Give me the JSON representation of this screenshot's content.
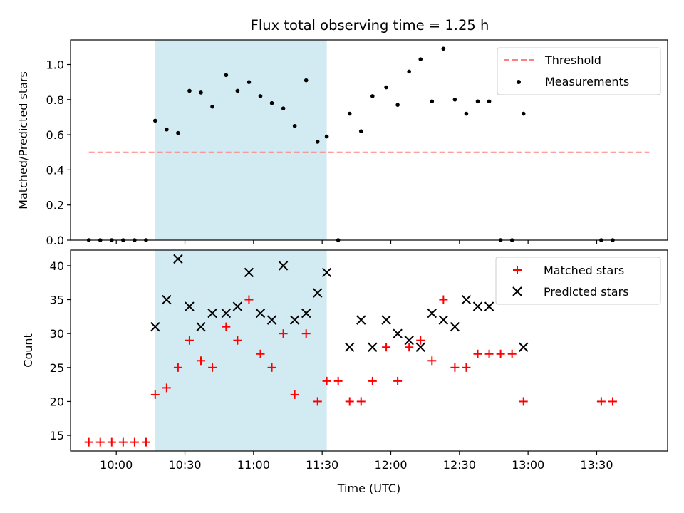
{
  "chart_data": [
    {
      "type": "scatter",
      "title": "Flux total observing time = 1.25 h",
      "xlabel": "",
      "ylabel": "Matched/Predicted stars",
      "xlim": [
        "09:40",
        "14:01"
      ],
      "ylim": [
        0,
        1.14
      ],
      "yticks": [
        0.0,
        0.2,
        0.4,
        0.6,
        0.8,
        1.0
      ],
      "ytick_labels": [
        "0.0",
        "0.2",
        "0.4",
        "0.6",
        "0.8",
        "1.0"
      ],
      "grid": false,
      "highlight_span": {
        "start": "10:17",
        "end": "11:32",
        "color": "#add8e6"
      },
      "legend": {
        "position": "top-right",
        "entries": [
          "Threshold",
          "Measurements"
        ]
      },
      "threshold": {
        "name": "Threshold",
        "y": 0.5,
        "x_start": "09:48",
        "x_end": "13:53",
        "color": "#ff8080",
        "style": "dashed"
      },
      "series": [
        {
          "name": "Measurements",
          "color": "#000000",
          "marker": "dot",
          "x": [
            "09:48",
            "09:53",
            "09:58",
            "10:03",
            "10:08",
            "10:13",
            "10:17",
            "10:22",
            "10:27",
            "10:32",
            "10:37",
            "10:42",
            "10:48",
            "10:53",
            "10:58",
            "11:03",
            "11:08",
            "11:13",
            "11:18",
            "11:23",
            "11:28",
            "11:32",
            "11:37",
            "11:42",
            "11:47",
            "11:52",
            "11:58",
            "12:03",
            "12:08",
            "12:13",
            "12:18",
            "12:23",
            "12:28",
            "12:33",
            "12:38",
            "12:43",
            "12:48",
            "12:53",
            "12:58",
            "13:32",
            "13:37"
          ],
          "y": [
            0,
            0,
            0,
            0,
            0,
            0,
            0.68,
            0.63,
            0.61,
            0.85,
            0.84,
            0.76,
            0.94,
            0.85,
            0.9,
            0.82,
            0.78,
            0.75,
            0.65,
            0.91,
            0.56,
            0.59,
            0,
            0.72,
            0.62,
            0.82,
            0.87,
            0.77,
            0.96,
            1.03,
            0.79,
            1.09,
            0.8,
            0.72,
            0.79,
            0.79,
            0,
            0,
            0.72,
            0,
            0
          ]
        }
      ]
    },
    {
      "type": "scatter",
      "title": "",
      "xlabel": "Time (UTC)",
      "ylabel": "Count",
      "xlim": [
        "09:40",
        "14:01"
      ],
      "ylim": [
        12.7,
        42.3
      ],
      "xticks": [
        "10:00",
        "10:30",
        "11:00",
        "11:30",
        "12:00",
        "12:30",
        "13:00",
        "13:30"
      ],
      "yticks": [
        15,
        20,
        25,
        30,
        35,
        40
      ],
      "ytick_labels": [
        "15",
        "20",
        "25",
        "30",
        "35",
        "40"
      ],
      "grid": false,
      "highlight_span": {
        "start": "10:17",
        "end": "11:32",
        "color": "#add8e6"
      },
      "legend": {
        "position": "top-right",
        "entries": [
          "Matched stars",
          "Predicted stars"
        ]
      },
      "series": [
        {
          "name": "Matched stars",
          "color": "#ff0000",
          "marker": "plus",
          "x": [
            "09:48",
            "09:53",
            "09:58",
            "10:03",
            "10:08",
            "10:13",
            "10:17",
            "10:22",
            "10:27",
            "10:32",
            "10:37",
            "10:42",
            "10:48",
            "10:53",
            "10:58",
            "11:03",
            "11:08",
            "11:13",
            "11:18",
            "11:23",
            "11:28",
            "11:32",
            "11:37",
            "11:42",
            "11:47",
            "11:52",
            "11:58",
            "12:03",
            "12:08",
            "12:13",
            "12:18",
            "12:23",
            "12:28",
            "12:33",
            "12:38",
            "12:43",
            "12:48",
            "12:53",
            "12:58",
            "13:32",
            "13:37"
          ],
          "y": [
            14,
            14,
            14,
            14,
            14,
            14,
            21,
            22,
            25,
            29,
            26,
            25,
            31,
            29,
            35,
            27,
            25,
            30,
            21,
            30,
            20,
            23,
            23,
            20,
            20,
            23,
            28,
            23,
            28,
            29,
            26,
            35,
            25,
            25,
            27,
            27,
            27,
            27,
            20,
            20,
            20
          ]
        },
        {
          "name": "Predicted stars",
          "color": "#000000",
          "marker": "x",
          "x": [
            "10:17",
            "10:22",
            "10:27",
            "10:32",
            "10:37",
            "10:42",
            "10:48",
            "10:53",
            "10:58",
            "11:03",
            "11:08",
            "11:13",
            "11:18",
            "11:23",
            "11:28",
            "11:32",
            "11:42",
            "11:47",
            "11:52",
            "11:58",
            "12:03",
            "12:08",
            "12:13",
            "12:18",
            "12:23",
            "12:28",
            "12:33",
            "12:38",
            "12:43",
            "12:58"
          ],
          "y": [
            31,
            35,
            41,
            34,
            31,
            33,
            33,
            34,
            39,
            33,
            32,
            40,
            32,
            33,
            36,
            39,
            28,
            32,
            28,
            32,
            30,
            29,
            28,
            33,
            32,
            31,
            35,
            34,
            34,
            28
          ]
        }
      ]
    }
  ]
}
